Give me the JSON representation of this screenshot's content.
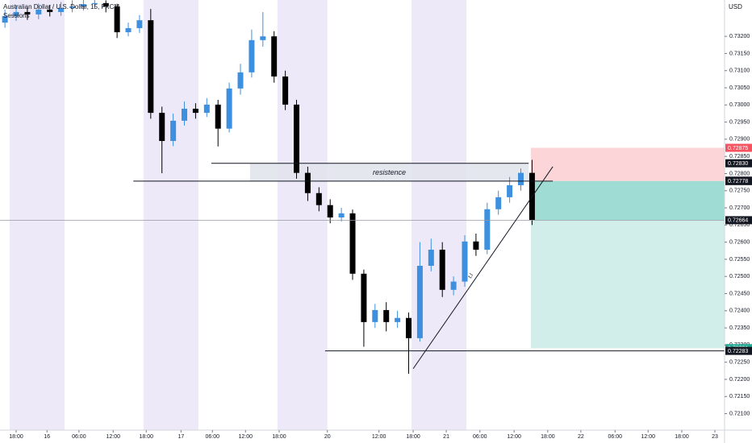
{
  "chart_data": {
    "type": "candlestick",
    "title": "Australian Dollar / U.S. Dollar, 15, FXCM",
    "subtitle": "Sessions",
    "y_unit": "USD",
    "up_color": "#3d8fe0",
    "down_color": "#000000",
    "session_color": "#ede9f8",
    "xlim": [
      -2.88,
      126.33
    ],
    "ylim": [
      0.72052,
      0.73306
    ],
    "xticks": [
      {
        "value": 0,
        "label": "18:00"
      },
      {
        "value": 5.5,
        "label": "16"
      },
      {
        "value": 11.2,
        "label": "06:00"
      },
      {
        "value": 17.3,
        "label": "12:00"
      },
      {
        "value": 23.2,
        "label": "18:00"
      },
      {
        "value": 29.4,
        "label": "17"
      },
      {
        "value": 35,
        "label": "06:00"
      },
      {
        "value": 40.9,
        "label": "12:00"
      },
      {
        "value": 46.9,
        "label": "18:00"
      },
      {
        "value": 55.5,
        "label": "20"
      },
      {
        "value": 64.7,
        "label": "12:00"
      },
      {
        "value": 70.8,
        "label": "18:00"
      },
      {
        "value": 76.7,
        "label": "21"
      },
      {
        "value": 82.7,
        "label": "06:00"
      },
      {
        "value": 88.8,
        "label": "12:00"
      },
      {
        "value": 94.8,
        "label": "18:00"
      },
      {
        "value": 100.7,
        "label": "22"
      },
      {
        "value": 106.8,
        "label": "06:00"
      },
      {
        "value": 112.7,
        "label": "12:00"
      },
      {
        "value": 118.7,
        "label": "18:00"
      },
      {
        "value": 124.6,
        "label": "23"
      }
    ],
    "yticks": [
      {
        "value": 0.732,
        "label": "0.73200"
      },
      {
        "value": 0.7315,
        "label": "0.73150"
      },
      {
        "value": 0.731,
        "label": "0.73100"
      },
      {
        "value": 0.7305,
        "label": "0.73050"
      },
      {
        "value": 0.73,
        "label": "0.73000"
      },
      {
        "value": 0.7295,
        "label": "0.72950"
      },
      {
        "value": 0.729,
        "label": "0.72900"
      },
      {
        "value": 0.7285,
        "label": "0.72850"
      },
      {
        "value": 0.728,
        "label": "0.72800"
      },
      {
        "value": 0.7275,
        "label": "0.72750"
      },
      {
        "value": 0.727,
        "label": "0.72700"
      },
      {
        "value": 0.7265,
        "label": "0.72650"
      },
      {
        "value": 0.726,
        "label": "0.72600"
      },
      {
        "value": 0.7255,
        "label": "0.72550"
      },
      {
        "value": 0.725,
        "label": "0.72500"
      },
      {
        "value": 0.7245,
        "label": "0.72450"
      },
      {
        "value": 0.724,
        "label": "0.72400"
      },
      {
        "value": 0.7235,
        "label": "0.72350"
      },
      {
        "value": 0.723,
        "label": "0.72300"
      },
      {
        "value": 0.7225,
        "label": "0.72250"
      },
      {
        "value": 0.722,
        "label": "0.72200"
      },
      {
        "value": 0.7215,
        "label": "0.72150"
      },
      {
        "value": 0.721,
        "label": "0.72100"
      }
    ],
    "sessions": [
      [
        -1.15,
        8.63
      ],
      [
        22.7,
        32.5
      ],
      [
        46.6,
        55.5
      ],
      [
        70.5,
        80.3
      ]
    ],
    "x": [
      -2,
      0,
      2,
      4,
      6,
      8,
      10,
      12,
      14,
      16,
      18,
      20,
      22,
      24,
      26,
      28,
      30,
      32,
      34,
      36,
      38,
      40,
      42,
      44,
      46,
      48,
      50,
      52,
      54,
      56,
      58,
      60,
      62,
      64,
      66,
      68,
      70,
      72,
      74,
      76,
      78,
      80,
      82,
      84,
      86,
      88,
      90,
      92
    ],
    "open": [
      0.7324,
      0.73259,
      0.73271,
      0.73264,
      0.73278,
      0.73271,
      0.73283,
      0.73287,
      0.73294,
      0.73297,
      0.73287,
      0.73212,
      0.73224,
      0.73247,
      0.72977,
      0.72895,
      0.72954,
      0.72989,
      0.72977,
      0.73001,
      0.72931,
      0.73048,
      0.73095,
      0.73189,
      0.732,
      0.73083,
      0.73001,
      0.72802,
      0.72743,
      0.72708,
      0.72672,
      0.72684,
      0.72508,
      0.72367,
      0.72402,
      0.72367,
      0.72379,
      0.7232,
      0.72531,
      0.72578,
      0.72461,
      0.72485,
      0.72602,
      0.72578,
      0.72696,
      0.72731,
      0.72766,
      0.72802
    ],
    "high": [
      0.73278,
      0.7329,
      0.73285,
      0.73296,
      0.73292,
      0.733,
      0.73305,
      0.7331,
      0.73315,
      0.73305,
      0.73295,
      0.7324,
      0.73262,
      0.7328,
      0.72995,
      0.72975,
      0.7301,
      0.73005,
      0.7302,
      0.73015,
      0.73065,
      0.7312,
      0.7322,
      0.73271,
      0.73215,
      0.731,
      0.73015,
      0.7282,
      0.7276,
      0.72725,
      0.727,
      0.72695,
      0.7252,
      0.7242,
      0.72425,
      0.724,
      0.72395,
      0.726,
      0.7261,
      0.726,
      0.725,
      0.7262,
      0.72625,
      0.72715,
      0.7275,
      0.7279,
      0.72815,
      0.7284
    ],
    "low": [
      0.73225,
      0.73245,
      0.73248,
      0.7325,
      0.73258,
      0.7326,
      0.7327,
      0.73275,
      0.7328,
      0.7327,
      0.73195,
      0.732,
      0.7321,
      0.7296,
      0.72801,
      0.7288,
      0.7294,
      0.7296,
      0.72965,
      0.72879,
      0.7292,
      0.7303,
      0.7308,
      0.7317,
      0.73065,
      0.72985,
      0.72785,
      0.7272,
      0.7269,
      0.72655,
      0.7266,
      0.7249,
      0.72295,
      0.7235,
      0.7234,
      0.7235,
      0.72216,
      0.7231,
      0.72515,
      0.7244,
      0.72445,
      0.7247,
      0.7256,
      0.72565,
      0.7268,
      0.72715,
      0.7275,
      0.7265
    ],
    "close": [
      0.73259,
      0.73271,
      0.73264,
      0.73278,
      0.73271,
      0.73283,
      0.73287,
      0.73294,
      0.73297,
      0.73287,
      0.73212,
      0.73224,
      0.73247,
      0.72977,
      0.72895,
      0.72954,
      0.72989,
      0.72977,
      0.73001,
      0.72931,
      0.73048,
      0.73095,
      0.73189,
      0.732,
      0.73083,
      0.73001,
      0.72802,
      0.72743,
      0.72708,
      0.72672,
      0.72684,
      0.72508,
      0.72367,
      0.72402,
      0.72367,
      0.72379,
      0.7232,
      0.72531,
      0.72578,
      0.72461,
      0.72485,
      0.72602,
      0.72578,
      0.72696,
      0.72731,
      0.72766,
      0.72802,
      0.72664
    ],
    "levels": [
      {
        "price": 0.72778,
        "x": [
          20.9,
          95.7
        ]
      },
      {
        "price": 0.7283,
        "x": [
          34.8,
          91.4
        ]
      },
      {
        "price": 0.72283,
        "x": [
          55.1,
          126.33
        ]
      }
    ],
    "zone": {
      "label": "resistence",
      "top": 0.7283,
      "bottom": 0.72778,
      "x": [
        41.7,
        91.4
      ]
    },
    "trendline": {
      "label": "t.l",
      "x": [
        70.8,
        95.7
      ],
      "y": [
        0.72231,
        0.7282
      ]
    },
    "current_price": 0.72664,
    "position": {
      "entry": 0.72778,
      "stop": 0.72875,
      "target": 0.72291,
      "x": [
        91.8,
        126.33
      ]
    },
    "price_labels": [
      {
        "value": 0.72875,
        "label": "0.72875",
        "color": "#f7525f"
      },
      {
        "value": 0.7283,
        "label": "0.72830",
        "color": "#131722"
      },
      {
        "value": 0.7278,
        "label": "0.72780",
        "color": "#5d606b"
      },
      {
        "value": 0.72778,
        "label": "0.72778",
        "color": "#131722"
      },
      {
        "value": 0.72664,
        "label": "0.72664",
        "color": "#131722"
      },
      {
        "value": 0.72291,
        "label": "0.72291",
        "color": "#22ab94"
      },
      {
        "value": 0.72283,
        "label": "0.72283",
        "color": "#131722"
      }
    ]
  }
}
